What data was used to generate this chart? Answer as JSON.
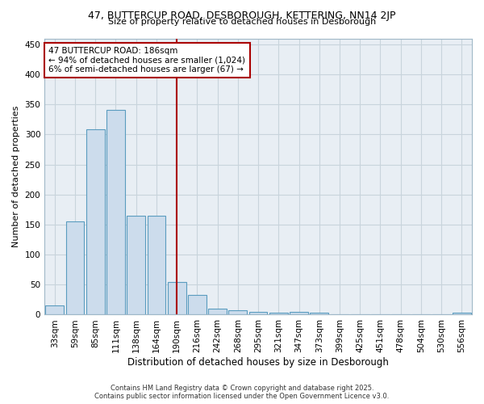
{
  "title1": "47, BUTTERCUP ROAD, DESBOROUGH, KETTERING, NN14 2JP",
  "title2": "Size of property relative to detached houses in Desborough",
  "xlabel": "Distribution of detached houses by size in Desborough",
  "ylabel": "Number of detached properties",
  "footer1": "Contains HM Land Registry data © Crown copyright and database right 2025.",
  "footer2": "Contains public sector information licensed under the Open Government Licence v3.0.",
  "annotation_line1": "47 BUTTERCUP ROAD: 186sqm",
  "annotation_line2": "← 94% of detached houses are smaller (1,024)",
  "annotation_line3": "6% of semi-detached houses are larger (67) →",
  "bin_labels": [
    "33sqm",
    "59sqm",
    "85sqm",
    "111sqm",
    "138sqm",
    "164sqm",
    "190sqm",
    "216sqm",
    "242sqm",
    "268sqm",
    "295sqm",
    "321sqm",
    "347sqm",
    "373sqm",
    "399sqm",
    "425sqm",
    "451sqm",
    "478sqm",
    "504sqm",
    "530sqm",
    "556sqm"
  ],
  "bar_values": [
    15,
    155,
    308,
    341,
    165,
    165,
    55,
    33,
    10,
    8,
    5,
    3,
    4,
    3,
    0,
    0,
    0,
    0,
    0,
    0,
    3
  ],
  "bar_color": "#ccdcec",
  "bar_edge_color": "#5a9cbf",
  "highlight_bar_index": 6,
  "vline_color": "#aa0000",
  "annotation_box_edge_color": "#aa0000",
  "annotation_box_face_color": "#ffffff",
  "ylim": [
    0,
    460
  ],
  "yticks": [
    0,
    50,
    100,
    150,
    200,
    250,
    300,
    350,
    400,
    450
  ],
  "grid_color": "#c8d4dc",
  "background_color": "#ffffff",
  "plot_bg_color": "#e8eef4",
  "figsize": [
    6.0,
    5.0
  ],
  "dpi": 100
}
